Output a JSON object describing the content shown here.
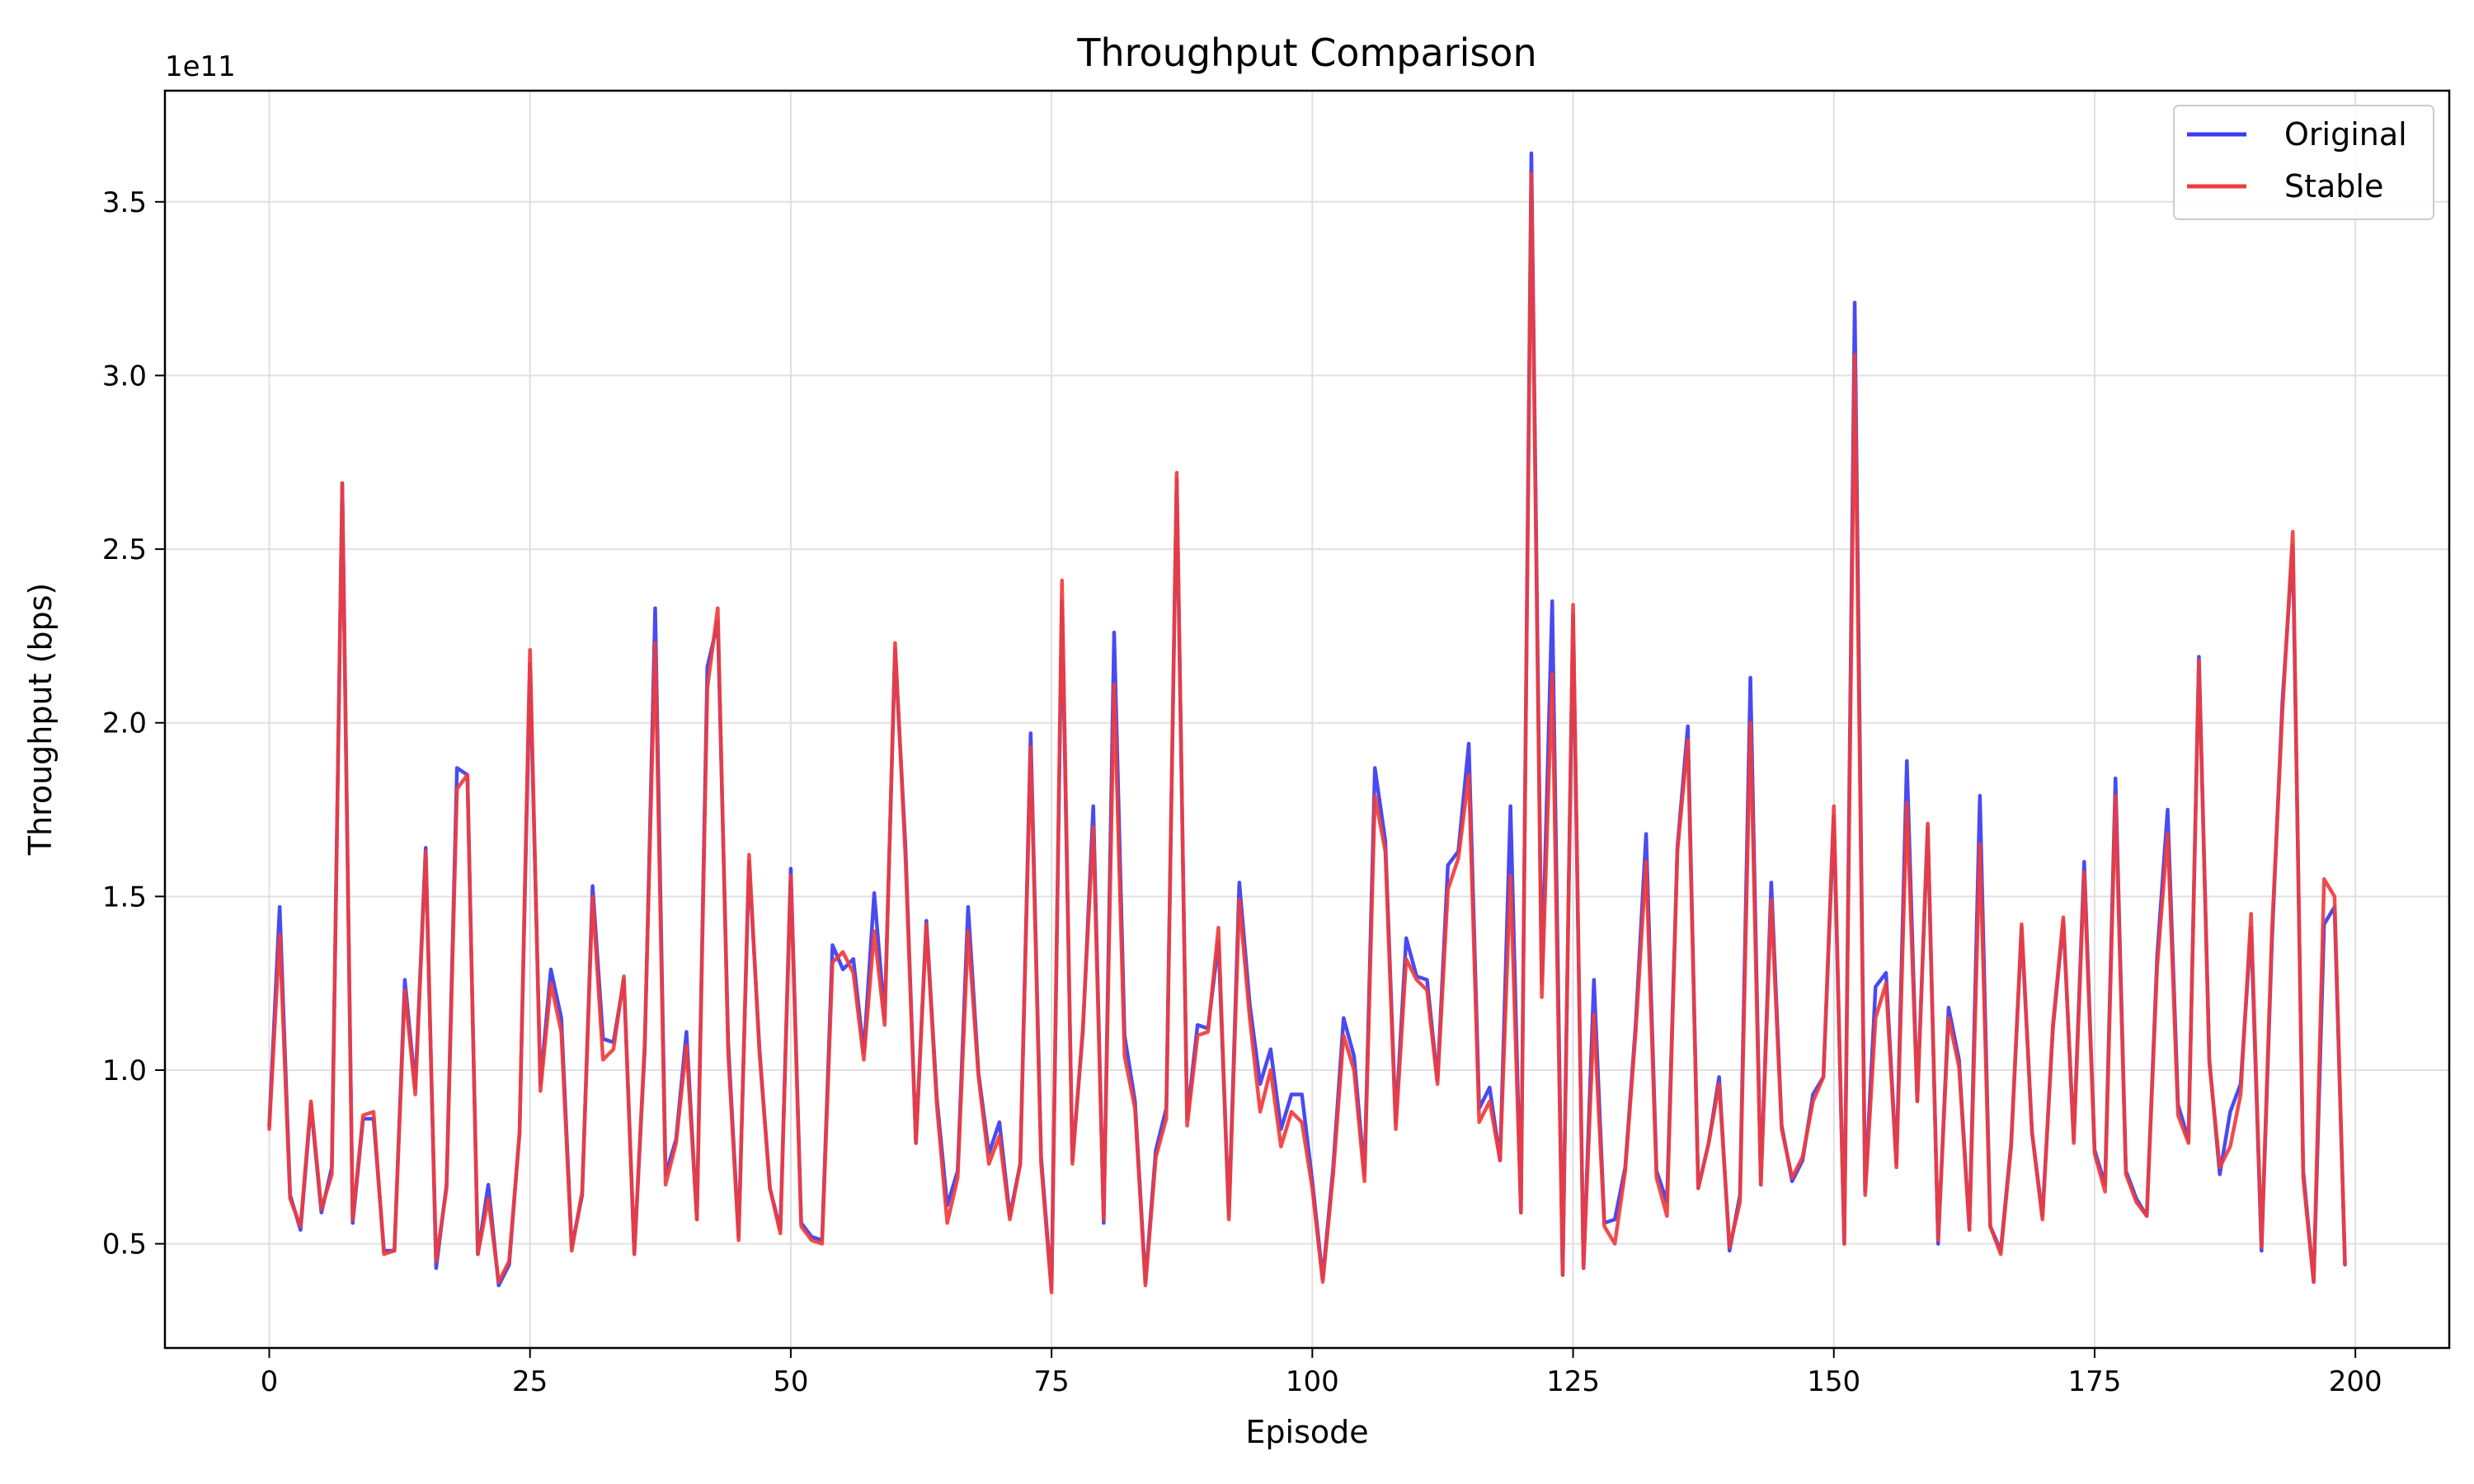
{
  "chart_data": {
    "type": "line",
    "title": "Throughput Comparison",
    "xlabel": "Episode",
    "ylabel": "Throughput (bps)",
    "y_offset_label": "1e11",
    "xlim": [
      -10,
      209
    ],
    "ylim": [
      0.2,
      3.82
    ],
    "xticks": [
      0,
      25,
      50,
      75,
      100,
      125,
      150,
      175,
      200
    ],
    "xtick_labels": [
      "0",
      "25",
      "50",
      "75",
      "100",
      "125",
      "150",
      "175",
      "200"
    ],
    "yticks": [
      0.5,
      1.0,
      1.5,
      2.0,
      2.5,
      3.0,
      3.5
    ],
    "ytick_labels": [
      "0.5",
      "1.0",
      "1.5",
      "2.0",
      "2.5",
      "3.0",
      "3.5"
    ],
    "grid": true,
    "legend_position": "top-right",
    "x": [
      0,
      1,
      2,
      3,
      4,
      5,
      6,
      7,
      8,
      9,
      10,
      11,
      12,
      13,
      14,
      15,
      16,
      17,
      18,
      19,
      20,
      21,
      22,
      23,
      24,
      25,
      26,
      27,
      28,
      29,
      30,
      31,
      32,
      33,
      34,
      35,
      36,
      37,
      38,
      39,
      40,
      41,
      42,
      43,
      44,
      45,
      46,
      47,
      48,
      49,
      50,
      51,
      52,
      53,
      54,
      55,
      56,
      57,
      58,
      59,
      60,
      61,
      62,
      63,
      64,
      65,
      66,
      67,
      68,
      69,
      70,
      71,
      72,
      73,
      74,
      75,
      76,
      77,
      78,
      79,
      80,
      81,
      82,
      83,
      84,
      85,
      86,
      87,
      88,
      89,
      90,
      91,
      92,
      93,
      94,
      95,
      96,
      97,
      98,
      99,
      100,
      101,
      102,
      103,
      104,
      105,
      106,
      107,
      108,
      109,
      110,
      111,
      112,
      113,
      114,
      115,
      116,
      117,
      118,
      119,
      120,
      121,
      122,
      123,
      124,
      125,
      126,
      127,
      128,
      129,
      130,
      131,
      132,
      133,
      134,
      135,
      136,
      137,
      138,
      139,
      140,
      141,
      142,
      143,
      144,
      145,
      146,
      147,
      148,
      149,
      150,
      151,
      152,
      153,
      154,
      155,
      156,
      157,
      158,
      159,
      160,
      161,
      162,
      163,
      164,
      165,
      166,
      167,
      168,
      169,
      170,
      171,
      172,
      173,
      174,
      175,
      176,
      177,
      178,
      179,
      180,
      181,
      182,
      183,
      184,
      185,
      186,
      187,
      188,
      189,
      190,
      191,
      192,
      193,
      194,
      195,
      196,
      197,
      198,
      199
    ],
    "series": [
      {
        "name": "Original",
        "color": "#3b3bf0",
        "values": [
          0.84,
          1.47,
          0.64,
          0.54,
          0.9,
          0.59,
          0.72,
          2.69,
          0.56,
          0.86,
          0.86,
          0.48,
          0.48,
          1.26,
          0.95,
          1.64,
          0.43,
          0.67,
          1.87,
          1.85,
          0.47,
          0.67,
          0.38,
          0.44,
          0.82,
          2.17,
          0.96,
          1.29,
          1.15,
          0.49,
          0.64,
          1.53,
          1.09,
          1.08,
          1.26,
          0.47,
          1.06,
          2.33,
          0.7,
          0.8,
          1.11,
          0.57,
          2.16,
          2.29,
          1.08,
          0.52,
          1.6,
          1.06,
          0.66,
          0.54,
          1.58,
          0.56,
          0.52,
          0.51,
          1.36,
          1.29,
          1.32,
          1.05,
          1.51,
          1.15,
          2.21,
          1.64,
          0.79,
          1.43,
          0.92,
          0.61,
          0.71,
          1.47,
          0.99,
          0.76,
          0.85,
          0.58,
          0.73,
          1.97,
          0.75,
          0.37,
          2.35,
          0.74,
          1.11,
          1.76,
          0.56,
          2.26,
          1.1,
          0.91,
          0.39,
          0.77,
          0.89,
          2.7,
          0.86,
          1.13,
          1.12,
          1.37,
          0.58,
          1.54,
          1.19,
          0.96,
          1.06,
          0.83,
          0.93,
          0.93,
          0.68,
          0.4,
          0.72,
          1.15,
          1.04,
          0.7,
          1.87,
          1.66,
          0.85,
          1.38,
          1.27,
          1.26,
          0.97,
          1.59,
          1.63,
          1.94,
          0.89,
          0.95,
          0.74,
          1.76,
          0.59,
          3.64,
          1.25,
          2.35,
          0.41,
          2.31,
          0.43,
          1.26,
          0.56,
          0.57,
          0.72,
          1.13,
          1.68,
          0.71,
          0.62,
          1.64,
          1.99,
          0.66,
          0.79,
          0.98,
          0.48,
          0.64,
          2.13,
          0.67,
          1.54,
          0.84,
          0.68,
          0.74,
          0.93,
          0.98,
          1.73,
          0.5,
          3.21,
          0.65,
          1.24,
          1.28,
          0.73,
          1.89,
          0.91,
          1.7,
          0.5,
          1.18,
          1.03,
          0.54,
          1.79,
          0.55,
          0.48,
          0.79,
          1.41,
          0.82,
          0.58,
          1.12,
          1.43,
          0.8,
          1.6,
          0.77,
          0.67,
          1.84,
          0.71,
          0.63,
          0.58,
          1.33,
          1.75,
          0.9,
          0.8,
          2.19,
          1.03,
          0.7,
          0.88,
          0.96,
          1.41,
          0.48,
          1.37,
          2.06,
          2.51,
          0.71,
          0.39,
          1.42,
          1.47,
          0.44
        ]
      },
      {
        "name": "Stable",
        "color": "#f03c3c",
        "values": [
          0.83,
          1.39,
          0.63,
          0.55,
          0.91,
          0.6,
          0.7,
          2.69,
          0.57,
          0.87,
          0.88,
          0.47,
          0.48,
          1.23,
          0.93,
          1.63,
          0.45,
          0.66,
          1.81,
          1.85,
          0.47,
          0.63,
          0.39,
          0.45,
          0.82,
          2.21,
          0.94,
          1.25,
          1.11,
          0.48,
          0.65,
          1.5,
          1.03,
          1.06,
          1.27,
          0.47,
          1.08,
          2.23,
          0.67,
          0.79,
          1.07,
          0.57,
          2.1,
          2.33,
          1.05,
          0.51,
          1.62,
          1.05,
          0.66,
          0.53,
          1.56,
          0.55,
          0.51,
          0.5,
          1.31,
          1.34,
          1.28,
          1.03,
          1.4,
          1.13,
          2.23,
          1.61,
          0.79,
          1.42,
          0.9,
          0.56,
          0.69,
          1.4,
          0.98,
          0.73,
          0.81,
          0.57,
          0.73,
          1.93,
          0.73,
          0.36,
          2.41,
          0.73,
          1.12,
          1.7,
          0.57,
          2.11,
          1.04,
          0.89,
          0.38,
          0.75,
          0.86,
          2.72,
          0.84,
          1.1,
          1.11,
          1.41,
          0.57,
          1.49,
          1.15,
          0.88,
          1.0,
          0.78,
          0.88,
          0.85,
          0.66,
          0.39,
          0.7,
          1.1,
          1.0,
          0.68,
          1.79,
          1.63,
          0.83,
          1.32,
          1.26,
          1.23,
          0.96,
          1.52,
          1.61,
          1.85,
          0.85,
          0.91,
          0.74,
          1.56,
          0.59,
          3.58,
          1.21,
          2.14,
          0.41,
          2.34,
          0.43,
          1.16,
          0.55,
          0.5,
          0.71,
          1.11,
          1.6,
          0.69,
          0.58,
          1.63,
          1.95,
          0.66,
          0.79,
          0.96,
          0.49,
          0.62,
          2.0,
          0.67,
          1.49,
          0.83,
          0.69,
          0.75,
          0.91,
          0.98,
          1.76,
          0.5,
          3.06,
          0.64,
          1.15,
          1.25,
          0.72,
          1.77,
          0.91,
          1.71,
          0.51,
          1.15,
          1.01,
          0.54,
          1.65,
          0.55,
          0.47,
          0.78,
          1.42,
          0.82,
          0.57,
          1.13,
          1.44,
          0.79,
          1.57,
          0.76,
          0.65,
          1.79,
          0.7,
          0.62,
          0.58,
          1.3,
          1.68,
          0.87,
          0.79,
          2.18,
          1.02,
          0.72,
          0.78,
          0.93,
          1.45,
          0.49,
          1.4,
          2.03,
          2.55,
          0.69,
          0.39,
          1.55,
          1.5,
          0.44
        ]
      }
    ]
  }
}
